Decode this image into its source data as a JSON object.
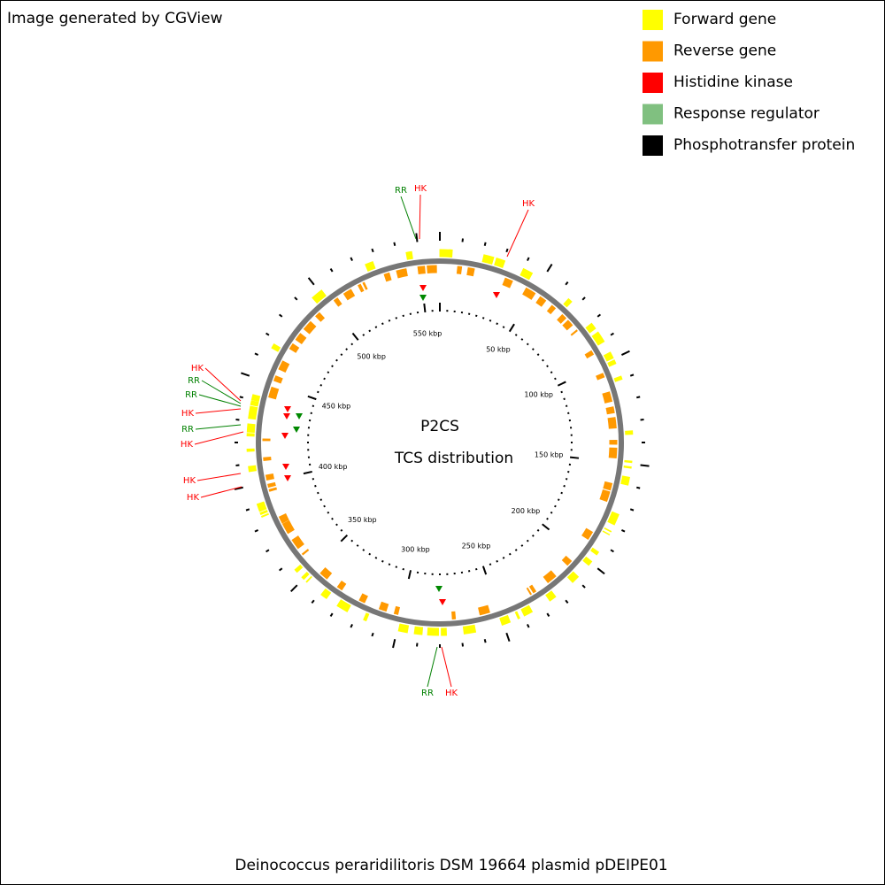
{
  "header": {
    "credit": "Image generated by CGView"
  },
  "legend": [
    {
      "label": "Forward gene",
      "color": "#ffff00"
    },
    {
      "label": "Reverse gene",
      "color": "#ff9900"
    },
    {
      "label": "Histidine kinase",
      "color": "#ff0000"
    },
    {
      "label": "Response regulator",
      "color": "#80c080"
    },
    {
      "label": "Phosphotransfer protein",
      "color": "#000000"
    }
  ],
  "map": {
    "title": "P2CS",
    "subtitle": "TCS distribution",
    "scale_labels": [
      "50 kbp",
      "100 kbp",
      "150 kbp",
      "200 kbp",
      "250 kbp",
      "300 kbp",
      "350 kbp",
      "400 kbp",
      "450 kbp",
      "500 kbp",
      "550 kbp"
    ],
    "features": [
      {
        "label": "RR",
        "color": "#008000"
      },
      {
        "label": "HK",
        "color": "#ff0000"
      },
      {
        "label": "HK",
        "color": "#ff0000"
      },
      {
        "label": "HK",
        "color": "#ff0000"
      },
      {
        "label": "RR",
        "color": "#008000"
      },
      {
        "label": "RR",
        "color": "#008000"
      },
      {
        "label": "HK",
        "color": "#ff0000"
      },
      {
        "label": "RR",
        "color": "#008000"
      },
      {
        "label": "HK",
        "color": "#ff0000"
      },
      {
        "label": "HK",
        "color": "#ff0000"
      },
      {
        "label": "HK",
        "color": "#ff0000"
      },
      {
        "label": "RR",
        "color": "#008000"
      },
      {
        "label": "HK",
        "color": "#ff0000"
      }
    ]
  },
  "footer": {
    "caption": "Deinococcus peraridilitoris DSM 19664 plasmid pDEIPE01"
  }
}
